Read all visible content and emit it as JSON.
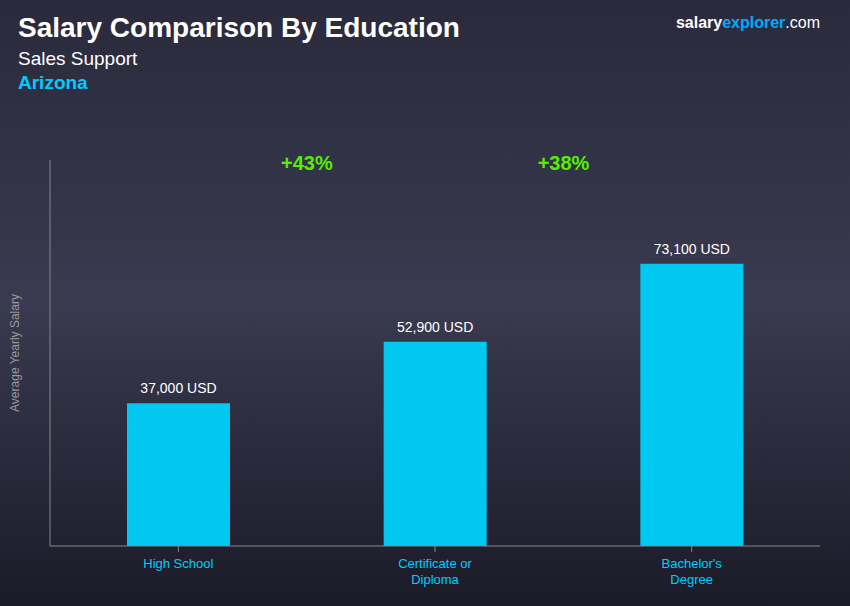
{
  "chart_data": {
    "type": "bar",
    "title": "Salary Comparison By Education",
    "subtitle": "Sales Support",
    "location": "Arizona",
    "brand": [
      "salary",
      "explorer",
      ".com"
    ],
    "ylabel": "Average Yearly Salary",
    "categories": [
      "High School",
      "Certificate or\nDiploma",
      "Bachelor's\nDegree"
    ],
    "values": [
      37000,
      52900,
      73100
    ],
    "value_labels": [
      "37,000 USD",
      "52,900 USD",
      "73,100 USD"
    ],
    "annotations": [
      "+43%",
      "+38%"
    ],
    "color": "#00c8f0",
    "ylim": [
      0,
      100000
    ],
    "tick_labels": "x",
    "grid": false,
    "data_labels": true
  }
}
